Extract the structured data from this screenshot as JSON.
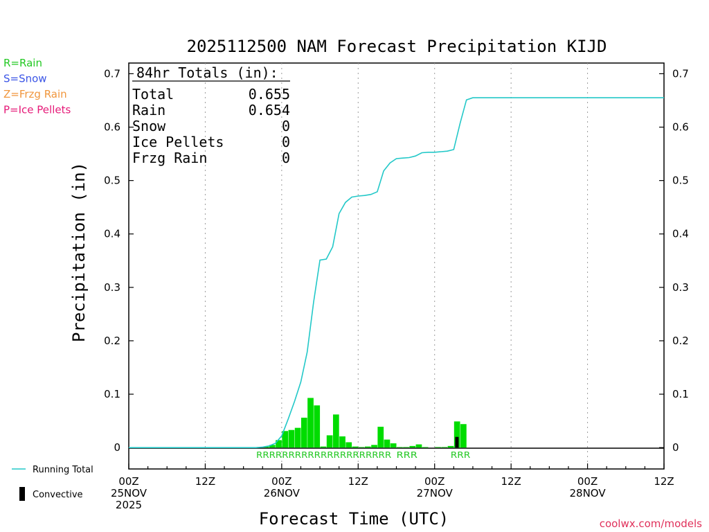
{
  "chart_data": {
    "type": "bar",
    "title": "2025112500 NAM Forecast Precipitation KIJD",
    "xlabel": "Forecast Time (UTC)",
    "ylabel": "Precipitation (in)",
    "ylim": [
      -0.04,
      0.72
    ],
    "xlim_hours": [
      0,
      84
    ],
    "y_ticks": [
      "0",
      "0.1",
      "0.2",
      "0.3",
      "0.4",
      "0.5",
      "0.6",
      "0.7"
    ],
    "x_ticks": [
      {
        "line1": "00Z",
        "line2": "25NOV",
        "line3": "2025"
      },
      {
        "line1": "12Z",
        "line2": "",
        "line3": ""
      },
      {
        "line1": "00Z",
        "line2": "26NOV",
        "line3": ""
      },
      {
        "line1": "12Z",
        "line2": "",
        "line3": ""
      },
      {
        "line1": "00Z",
        "line2": "27NOV",
        "line3": ""
      },
      {
        "line1": "12Z",
        "line2": "",
        "line3": ""
      },
      {
        "line1": "00Z",
        "line2": "28NOV",
        "line3": ""
      },
      {
        "line1": "12Z",
        "line2": "",
        "line3": ""
      }
    ],
    "bar_hours": [
      21,
      22,
      23,
      24,
      25,
      26,
      27,
      28,
      29,
      30,
      31,
      32,
      33,
      34,
      35,
      36,
      37,
      38,
      39,
      40,
      41,
      42,
      43,
      44,
      45,
      46,
      47,
      48,
      49,
      50,
      51,
      52,
      53,
      54,
      55,
      56
    ],
    "bar_values": [
      0.001,
      0.002,
      0.005,
      0.014,
      0.031,
      0.033,
      0.037,
      0.056,
      0.093,
      0.079,
      0.002,
      0.023,
      0.062,
      0.021,
      0.01,
      0.002,
      0.001,
      0.002,
      0.005,
      0.039,
      0.015,
      0.008,
      0.001,
      0.001,
      0.003,
      0.006,
      0.001,
      0.0,
      0.001,
      0.001,
      0.003,
      0.049,
      0.044,
      0.0,
      0.0,
      0.0
    ],
    "convective_hours": [
      52
    ],
    "convective_values": [
      0.02
    ],
    "series": [
      {
        "name": "Running Total",
        "hours": [
          0,
          20,
          21,
          22,
          23,
          24,
          25,
          26,
          27,
          28,
          29,
          30,
          31,
          32,
          33,
          34,
          35,
          36,
          37,
          38,
          39,
          40,
          41,
          42,
          43,
          44,
          45,
          46,
          47,
          48,
          49,
          50,
          51,
          52,
          53,
          54,
          84
        ],
        "values": [
          0,
          0,
          0.001,
          0.003,
          0.008,
          0.022,
          0.053,
          0.086,
          0.123,
          0.179,
          0.272,
          0.351,
          0.353,
          0.376,
          0.438,
          0.459,
          0.469,
          0.471,
          0.472,
          0.474,
          0.479,
          0.518,
          0.533,
          0.541,
          0.542,
          0.543,
          0.546,
          0.552,
          0.553,
          0.553,
          0.554,
          0.555,
          0.558,
          0.607,
          0.651,
          0.655,
          0.655
        ]
      }
    ],
    "precip_type_labels": [
      {
        "text": "RRRRRRRRRRRRRRRRRRRRR",
        "start_hour": 20.0,
        "end_hour": 41.2
      },
      {
        "text": "RRR",
        "start_hour": 42.0,
        "end_hour": 45.3
      },
      {
        "text": "RRR",
        "start_hour": 50.5,
        "end_hour": 53.6
      }
    ],
    "totals_box": {
      "header": "84hr Totals (in):",
      "rows": [
        {
          "label": "Total",
          "value": "0.655"
        },
        {
          "label": "Rain",
          "value": "0.654"
        },
        {
          "label": "Snow",
          "value": "0"
        },
        {
          "label": "Ice Pellets",
          "value": "0"
        },
        {
          "label": "Frzg Rain",
          "value": "0"
        }
      ]
    },
    "type_legend": [
      {
        "text": "R=Rain",
        "color": "#22c822"
      },
      {
        "text": "S=Snow",
        "color": "#3b55e6"
      },
      {
        "text": "Z=Frzg Rain",
        "color": "#f0963c"
      },
      {
        "text": "P=Ice Pellets",
        "color": "#e61a78"
      }
    ],
    "line_legend": [
      {
        "text": "Running Total",
        "kind": "line",
        "color": "#22c8c8"
      },
      {
        "text": "Convective",
        "kind": "bar",
        "color": "#000000"
      }
    ]
  },
  "credit": "coolwx.com/models",
  "colors": {
    "bar": "#00dc00",
    "running_total": "#22c8c8",
    "convective": "#000000",
    "rain_text": "#22c822",
    "credit": "#e0305a"
  }
}
